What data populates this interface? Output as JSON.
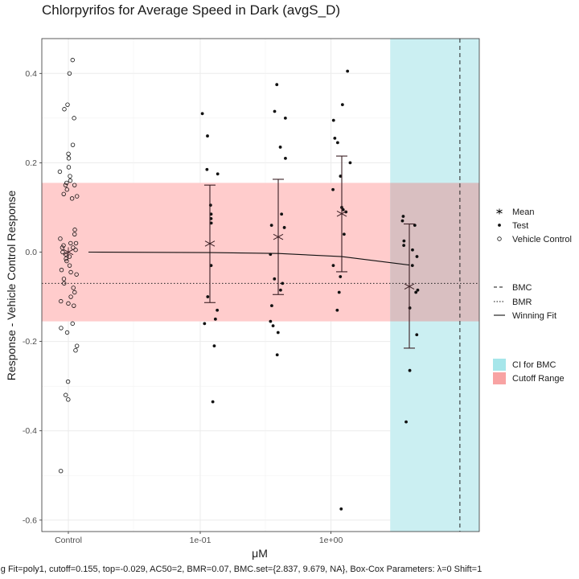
{
  "chart_data": {
    "type": "scatter",
    "title": "Chlorpyrifos for Average Speed in Dark (avgS_D)",
    "xlabel": "μM",
    "ylabel": "Response - Vehicle Control Response",
    "footer": "g Fit=poly1, cutoff=0.155, top=-0.029, AC50=2, BMR=0.07, BMC.set={2.837, 9.679, NA}, Box-Cox Parameters: λ=0 Shift=1",
    "x_categories": [
      "Control",
      "0.111",
      "0.333",
      "1.11",
      "3.33"
    ],
    "x_tick_labels": [
      "Control",
      "1e-01",
      "1e+00"
    ],
    "x_tick_values": [
      "Control",
      0.1,
      1
    ],
    "ylim": [
      -0.62,
      0.47
    ],
    "y_ticks": [
      0.4,
      0.2,
      0.0,
      -0.2,
      -0.4,
      -0.6
    ],
    "y_tick_labels": [
      "0.4",
      "0.2",
      "0.0",
      "-0.2",
      "-0.4",
      "-0.6"
    ],
    "grid": true,
    "legend_position": "right",
    "cutoff": 0.155,
    "bmr": -0.07,
    "bmc": 9.679,
    "ci_for_bmc": [
      2.837,
      9.679
    ],
    "colors": {
      "cutoff_range": "#ffcccc",
      "ci_for_bmc": "#cbeff2",
      "overlap": "#d9bfc1",
      "points": "#111111"
    },
    "vehicle_control": [
      0.43,
      0.4,
      0.33,
      0.32,
      0.3,
      0.24,
      0.22,
      0.21,
      0.19,
      0.18,
      0.17,
      0.16,
      0.155,
      0.15,
      0.15,
      0.14,
      0.13,
      0.125,
      0.12,
      0.05,
      0.04,
      0.03,
      0.02,
      0.02,
      0.015,
      0.01,
      0.01,
      0.005,
      0.0,
      -0.005,
      -0.01,
      -0.015,
      -0.02,
      -0.03,
      -0.04,
      -0.045,
      -0.05,
      -0.06,
      -0.07,
      -0.08,
      -0.09,
      -0.1,
      -0.11,
      -0.115,
      -0.12,
      -0.16,
      -0.17,
      -0.18,
      -0.21,
      -0.22,
      -0.29,
      -0.32,
      -0.33,
      -0.49
    ],
    "test_groups": [
      {
        "concentration": "0.111",
        "values": [
          0.31,
          0.26,
          0.185,
          0.175,
          0.105,
          0.085,
          0.075,
          0.065,
          -0.03,
          -0.1,
          -0.13,
          -0.15,
          -0.16,
          -0.21,
          -0.335
        ],
        "mean": 0.019,
        "lower": -0.113,
        "upper": 0.15
      },
      {
        "concentration": "0.333",
        "values": [
          0.375,
          0.315,
          0.3,
          0.235,
          0.21,
          0.085,
          0.06,
          0.055,
          -0.005,
          -0.06,
          -0.07,
          -0.085,
          -0.12,
          -0.155,
          -0.165,
          -0.18,
          -0.23
        ],
        "mean": 0.034,
        "lower": -0.095,
        "upper": 0.163
      },
      {
        "concentration": "1.11",
        "values": [
          0.405,
          0.33,
          0.295,
          0.255,
          0.245,
          0.2,
          0.17,
          0.14,
          0.1,
          0.095,
          0.09,
          0.04,
          -0.03,
          -0.055,
          -0.09,
          -0.13,
          -0.575
        ],
        "mean": 0.086,
        "lower": -0.044,
        "upper": 0.215
      },
      {
        "concentration": "3.33",
        "values": [
          0.08,
          0.07,
          0.06,
          0.025,
          0.015,
          0.005,
          -0.01,
          -0.03,
          -0.085,
          -0.09,
          -0.125,
          -0.185,
          -0.265,
          -0.38
        ],
        "mean": -0.077,
        "lower": -0.215,
        "upper": 0.063
      }
    ],
    "winning_fit": {
      "model": "poly1",
      "points": [
        [
          "Control",
          0.0
        ],
        [
          "0.111",
          -0.001
        ],
        [
          "0.333",
          -0.003
        ],
        [
          "1.11",
          -0.01
        ],
        [
          "3.33",
          -0.029
        ]
      ]
    },
    "legend": {
      "points": [
        "Mean",
        "Test",
        "Vehicle Control"
      ],
      "lines": [
        "BMC",
        "BMR",
        "Winning Fit"
      ],
      "fills": [
        "CI for BMC",
        "Cutoff Range"
      ]
    }
  }
}
